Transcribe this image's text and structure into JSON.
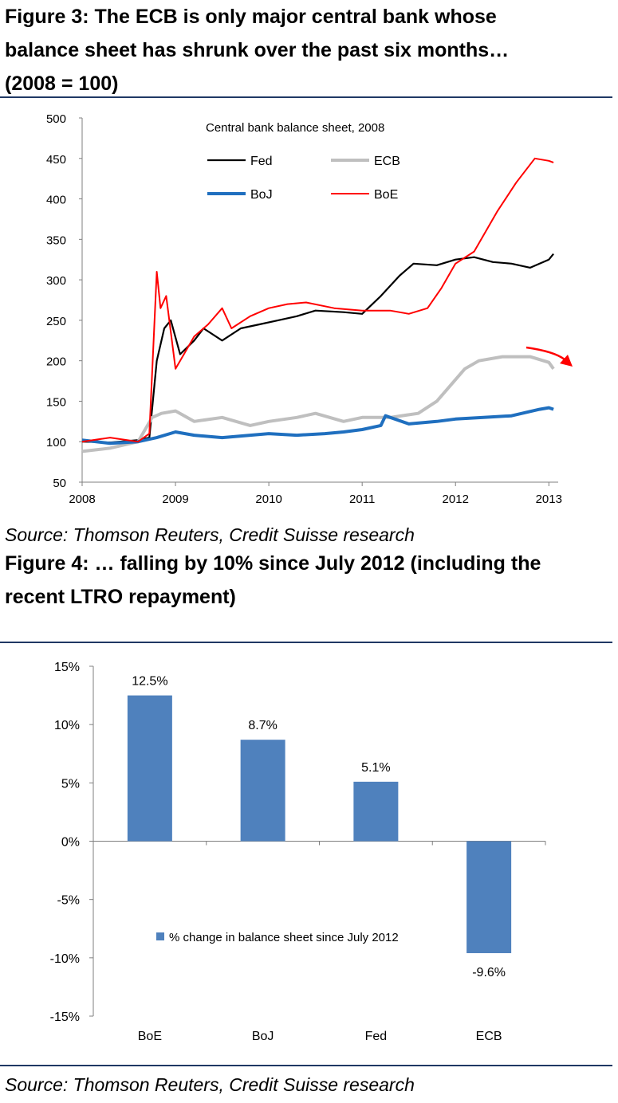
{
  "figure3": {
    "title_lines": [
      "Figure 3: The ECB is only major central bank whose",
      "balance sheet has shrunk over the past six months…",
      "(2008 = 100)"
    ],
    "source": "Source: Thomson Reuters, Credit Suisse research"
  },
  "figure4": {
    "title_lines": [
      "Figure 4: … falling by 10% since July 2012 (including the",
      "recent LTRO repayment)"
    ],
    "source": "Source: Thomson Reuters, Credit Suisse research"
  },
  "chart_data": [
    {
      "type": "line",
      "title": "Central bank balance sheet, 2008",
      "xlabel": "",
      "ylabel": "",
      "xlim": [
        2008,
        2013.1
      ],
      "ylim": [
        50,
        500
      ],
      "x_ticks": [
        2008,
        2009,
        2010,
        2011,
        2012,
        2013
      ],
      "y_ticks": [
        50,
        100,
        150,
        200,
        250,
        300,
        350,
        400,
        450,
        500
      ],
      "grid": false,
      "legend": "top",
      "annotation": "red arrow pointing down at end of ECB series",
      "series": [
        {
          "name": "Fed",
          "color": "#000000",
          "width": 2.2,
          "x": [
            2008,
            2008.3,
            2008.6,
            2008.72,
            2008.8,
            2008.88,
            2008.95,
            2009.05,
            2009.2,
            2009.3,
            2009.5,
            2009.7,
            2009.9,
            2010.1,
            2010.3,
            2010.5,
            2010.8,
            2011.0,
            2011.2,
            2011.4,
            2011.55,
            2011.8,
            2012.0,
            2012.2,
            2012.4,
            2012.6,
            2012.8,
            2013.0,
            2013.05
          ],
          "y": [
            100,
            99,
            102,
            105,
            200,
            240,
            250,
            208,
            225,
            240,
            225,
            240,
            245,
            250,
            255,
            262,
            260,
            258,
            280,
            305,
            320,
            318,
            325,
            328,
            322,
            320,
            315,
            325,
            332
          ]
        },
        {
          "name": "ECB",
          "color": "#bfbfbf",
          "width": 4,
          "x": [
            2008,
            2008.3,
            2008.6,
            2008.75,
            2008.85,
            2009.0,
            2009.2,
            2009.5,
            2009.8,
            2010.0,
            2010.3,
            2010.5,
            2010.8,
            2011.0,
            2011.3,
            2011.6,
            2011.8,
            2011.95,
            2012.1,
            2012.25,
            2012.5,
            2012.8,
            2013.0,
            2013.05
          ],
          "y": [
            88,
            92,
            100,
            130,
            135,
            138,
            125,
            130,
            120,
            125,
            130,
            135,
            125,
            130,
            130,
            135,
            150,
            170,
            190,
            200,
            205,
            205,
            198,
            190
          ]
        },
        {
          "name": "BoJ",
          "color": "#1f6fbf",
          "width": 4,
          "x": [
            2008,
            2008.3,
            2008.6,
            2008.8,
            2009.0,
            2009.2,
            2009.5,
            2009.8,
            2010.0,
            2010.3,
            2010.6,
            2010.8,
            2011.0,
            2011.2,
            2011.25,
            2011.5,
            2011.8,
            2012.0,
            2012.3,
            2012.6,
            2012.9,
            2013.0,
            2013.05
          ],
          "y": [
            102,
            98,
            100,
            105,
            112,
            108,
            105,
            108,
            110,
            108,
            110,
            112,
            115,
            120,
            132,
            122,
            125,
            128,
            130,
            132,
            140,
            142,
            140
          ]
        },
        {
          "name": "BoE",
          "color": "#ff0000",
          "width": 2,
          "x": [
            2008,
            2008.3,
            2008.6,
            2008.72,
            2008.8,
            2008.84,
            2008.9,
            2009.0,
            2009.1,
            2009.2,
            2009.35,
            2009.5,
            2009.6,
            2009.8,
            2010.0,
            2010.2,
            2010.4,
            2010.7,
            2011.0,
            2011.3,
            2011.5,
            2011.7,
            2011.85,
            2012.0,
            2012.2,
            2012.45,
            2012.65,
            2012.85,
            2013.0,
            2013.05
          ],
          "y": [
            100,
            105,
            100,
            110,
            310,
            265,
            280,
            190,
            210,
            230,
            245,
            265,
            240,
            255,
            265,
            270,
            272,
            265,
            262,
            262,
            258,
            265,
            290,
            320,
            335,
            385,
            420,
            450,
            447,
            445
          ]
        }
      ]
    },
    {
      "type": "bar",
      "title": "",
      "xlabel": "",
      "ylabel": "",
      "categories": [
        "BoE",
        "BoJ",
        "Fed",
        "ECB"
      ],
      "series": [
        {
          "name": "% change in balance sheet since July 2012",
          "values": [
            12.5,
            8.7,
            5.1,
            -9.6
          ],
          "color": "#4f81bd"
        }
      ],
      "value_labels": [
        "12.5%",
        "8.7%",
        "5.1%",
        "-9.6%"
      ],
      "ylim": [
        -15,
        15
      ],
      "y_ticks": [
        15,
        10,
        5,
        0,
        -5,
        -10,
        -15
      ],
      "y_tick_labels": [
        "15%",
        "10%",
        "5%",
        "0%",
        "-5%",
        "-10%",
        "-15%"
      ],
      "grid": false,
      "legend": "inside-lower-center"
    }
  ]
}
